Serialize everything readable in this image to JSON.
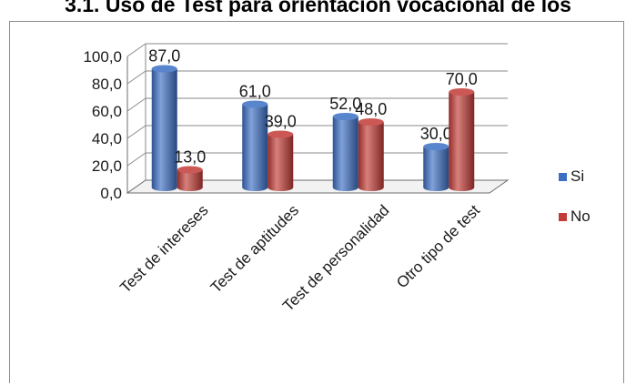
{
  "figure_heading": "3.1. Uso de Test para orientación vocacional de los",
  "chart_data": {
    "type": "bar",
    "categories": [
      "Test de intereses",
      "Test de aptitudes",
      "Test de personalidad",
      "Otro tipo de test"
    ],
    "series": [
      {
        "name": "Si",
        "values": [
          87.0,
          61.0,
          52.0,
          30.0
        ],
        "labels": [
          "87,0",
          "61,0",
          "52,0",
          "30,0"
        ],
        "color": "#3c6fc4"
      },
      {
        "name": "No",
        "values": [
          13.0,
          39.0,
          48.0,
          70.0
        ],
        "labels": [
          "13,0",
          "39,0",
          "48,0",
          "70,0"
        ],
        "color": "#c23b36"
      }
    ],
    "yticks": [
      "0,0",
      "20,0",
      "40,0",
      "60,0",
      "80,0",
      "100,0"
    ],
    "ylim": [
      0,
      100
    ],
    "grid": true,
    "legend_position": "right",
    "style": "3d cylinder"
  }
}
